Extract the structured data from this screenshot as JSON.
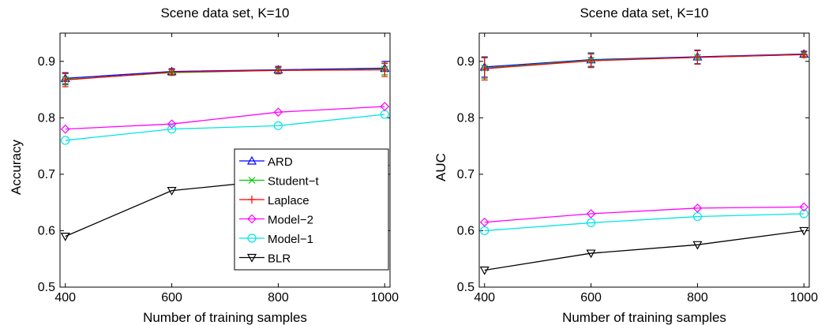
{
  "chart_data": [
    {
      "type": "line",
      "title": "Scene data set, K=10",
      "xlabel": "Number of training samples",
      "ylabel": "Accuracy",
      "x": [
        400,
        600,
        800,
        1000
      ],
      "xlim": [
        390,
        1010
      ],
      "ylim": [
        0.5,
        0.95
      ],
      "xticks": [
        "400",
        "600",
        "800",
        "1000"
      ],
      "yticks": [
        "0.5",
        "0.6",
        "0.7",
        "0.8",
        "0.9"
      ],
      "legend": "inside-center-right",
      "series": [
        {
          "name": "ARD",
          "color": "#0000ff",
          "marker": "triangle-up",
          "values": [
            0.87,
            0.882,
            0.885,
            0.888
          ],
          "err": [
            0.01,
            0.005,
            0.006,
            0.012
          ]
        },
        {
          "name": "Student−t",
          "color": "#00cc00",
          "marker": "x",
          "values": [
            0.868,
            0.88,
            0.884,
            0.886
          ],
          "err": [
            0.01,
            0.005,
            0.006,
            0.01
          ]
        },
        {
          "name": "Laplace",
          "color": "#ff0000",
          "marker": "plus",
          "values": [
            0.867,
            0.881,
            0.884,
            0.885
          ],
          "err": [
            0.012,
            0.005,
            0.006,
            0.012
          ]
        },
        {
          "name": "Model−2",
          "color": "#ff00ff",
          "marker": "diamond",
          "values": [
            0.78,
            0.789,
            0.81,
            0.82
          ]
        },
        {
          "name": "Model−1",
          "color": "#00e5e5",
          "marker": "circle",
          "values": [
            0.76,
            0.78,
            0.786,
            0.806
          ]
        },
        {
          "name": "BLR",
          "color": "#000000",
          "marker": "triangle-down",
          "values": [
            0.59,
            0.671,
            0.69,
            0.71
          ]
        }
      ]
    },
    {
      "type": "line",
      "title": "Scene data set, K=10",
      "xlabel": "Number of training samples",
      "ylabel": "AUC",
      "x": [
        400,
        600,
        800,
        1000
      ],
      "xlim": [
        390,
        1010
      ],
      "ylim": [
        0.5,
        0.95
      ],
      "xticks": [
        "400",
        "600",
        "800",
        "1000"
      ],
      "yticks": [
        "0.5",
        "0.6",
        "0.7",
        "0.8",
        "0.9"
      ],
      "series": [
        {
          "name": "ARD",
          "color": "#0000ff",
          "marker": "triangle-up",
          "values": [
            0.89,
            0.903,
            0.908,
            0.913
          ],
          "err": [
            0.018,
            0.012,
            0.012,
            0.005
          ]
        },
        {
          "name": "Student−t",
          "color": "#00cc00",
          "marker": "x",
          "values": [
            0.888,
            0.902,
            0.907,
            0.912
          ],
          "err": [
            0.018,
            0.012,
            0.012,
            0.005
          ]
        },
        {
          "name": "Laplace",
          "color": "#ff0000",
          "marker": "plus",
          "values": [
            0.887,
            0.901,
            0.907,
            0.912
          ],
          "err": [
            0.02,
            0.012,
            0.012,
            0.005
          ]
        },
        {
          "name": "Model−2",
          "color": "#ff00ff",
          "marker": "diamond",
          "values": [
            0.615,
            0.63,
            0.64,
            0.642
          ]
        },
        {
          "name": "Model−1",
          "color": "#00e5e5",
          "marker": "circle",
          "values": [
            0.6,
            0.614,
            0.625,
            0.63
          ]
        },
        {
          "name": "BLR",
          "color": "#000000",
          "marker": "triangle-down",
          "values": [
            0.53,
            0.56,
            0.575,
            0.6
          ]
        }
      ]
    }
  ]
}
